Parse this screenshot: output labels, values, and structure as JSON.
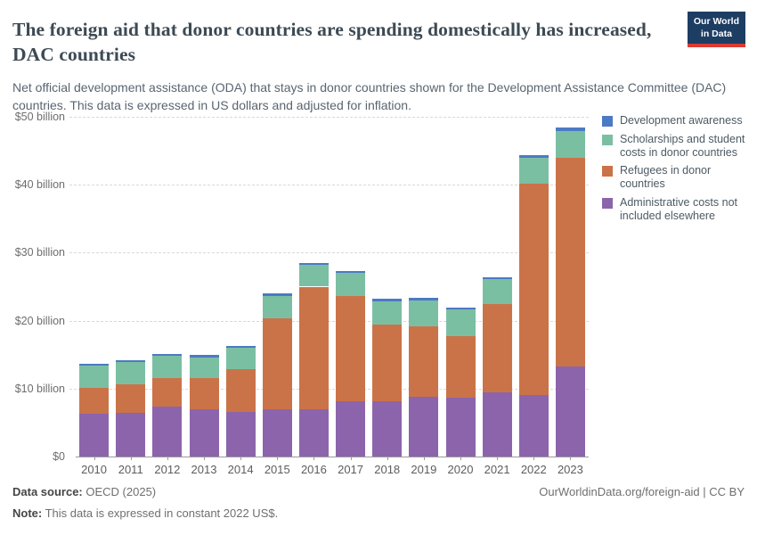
{
  "header": {
    "title": "The foreign aid that donor countries are spending domestically has increased, DAC countries",
    "subtitle": "Net official development assistance (ODA) that stays in donor countries shown for the Development Assistance Committee (DAC) countries. This data is expressed in US dollars and adjusted for inflation.",
    "logo": {
      "line1": "Our World",
      "line2": "in Data"
    }
  },
  "chart_data": {
    "type": "bar",
    "stacked": true,
    "title": "The foreign aid that donor countries are spending domestically has increased, DAC countries",
    "xlabel": "",
    "ylabel": "",
    "ylim": [
      0,
      50
    ],
    "grid": "dashed-horizontal",
    "legend_position": "right",
    "unit": "US$ billion, constant 2022 US$",
    "categories": [
      "2010",
      "2011",
      "2012",
      "2013",
      "2014",
      "2015",
      "2016",
      "2017",
      "2018",
      "2019",
      "2020",
      "2021",
      "2022",
      "2023"
    ],
    "yticks": [
      0,
      10,
      20,
      30,
      40,
      50
    ],
    "ytick_labels": [
      "$0",
      "$10 billion",
      "$20 billion",
      "$30 billion",
      "$40 billion",
      "$50 billion"
    ],
    "series": [
      {
        "name": "Administrative costs not included elsewhere",
        "color": "#8C64AC",
        "values": [
          6.3,
          6.4,
          7.3,
          7.0,
          6.6,
          6.9,
          7.0,
          8.2,
          8.2,
          8.8,
          8.7,
          9.5,
          9.0,
          13.3
        ]
      },
      {
        "name": "Refugees in donor countries",
        "color": "#CB7348",
        "values": [
          3.8,
          4.2,
          4.2,
          4.5,
          6.3,
          13.5,
          18.0,
          15.4,
          11.2,
          10.3,
          9.0,
          12.9,
          31.1,
          30.6
        ]
      },
      {
        "name": "Scholarships and student costs in donor countries",
        "color": "#7BBFA3",
        "values": [
          3.3,
          3.3,
          3.3,
          3.1,
          3.1,
          3.2,
          3.2,
          3.4,
          3.5,
          3.9,
          3.9,
          3.7,
          3.9,
          4.0
        ]
      },
      {
        "name": "Development awareness",
        "color": "#4C7AC4",
        "values": [
          0.3,
          0.3,
          0.3,
          0.3,
          0.3,
          0.4,
          0.3,
          0.3,
          0.3,
          0.3,
          0.3,
          0.3,
          0.4,
          0.5
        ]
      }
    ]
  },
  "footer": {
    "source_label": "Data source:",
    "source_value": "OECD (2025)",
    "link": "OurWorldinData.org/foreign-aid | CC BY",
    "note_label": "Note:",
    "note_value": "This data is expressed in constant 2022 US$."
  }
}
